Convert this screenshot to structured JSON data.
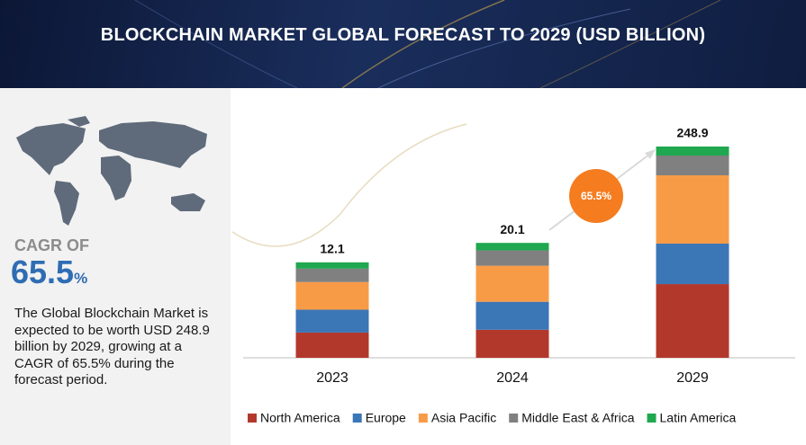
{
  "header": {
    "title": "BLOCKCHAIN MARKET GLOBAL FORECAST TO 2029 (USD BILLION)"
  },
  "sidebar": {
    "cagr_label": "CAGR OF",
    "cagr_value": "65.5",
    "cagr_unit": "%",
    "description": "The Global Blockchain Market is expected to be worth USD 248.9 billion by 2029, growing at a CAGR of 65.5% during the forecast period."
  },
  "chart_data": {
    "type": "stacked_bar",
    "log_scale": true,
    "categories": [
      "2023",
      "2024",
      "2029"
    ],
    "totals": [
      12.1,
      20.1,
      248.9
    ],
    "annotation": "65.5%",
    "series": [
      {
        "name": "North America",
        "color": "#b3382c",
        "values": [
          3.2,
          4.9,
          86.8
        ]
      },
      {
        "name": "Europe",
        "color": "#3b76b7",
        "values": [
          2.9,
          4.9,
          47.7
        ]
      },
      {
        "name": "Asia Pacific",
        "color": "#f89b47",
        "values": [
          3.5,
          6.3,
          80.5
        ]
      },
      {
        "name": "Middle East & Africa",
        "color": "#808080",
        "values": [
          1.7,
          2.7,
          23.3
        ]
      },
      {
        "name": "Latin America",
        "color": "#1fa84f",
        "values": [
          0.8,
          1.3,
          10.6
        ]
      }
    ]
  }
}
